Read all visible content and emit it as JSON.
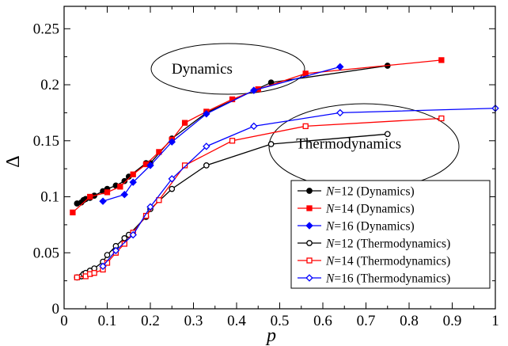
{
  "chart_data": {
    "type": "line",
    "xlabel": "p",
    "ylabel": "Δ",
    "xlim": [
      0,
      1
    ],
    "ylim": [
      0,
      0.27
    ],
    "xticks": [
      "0",
      "0.1",
      "0.2",
      "0.3",
      "0.4",
      "0.5",
      "0.6",
      "0.7",
      "0.8",
      "0.9",
      "1"
    ],
    "yticks": [
      "0",
      "0.05",
      "0.1",
      "0.15",
      "0.2",
      "0.25"
    ],
    "grid": false,
    "legend_position": "bottom-right",
    "annotations": [
      {
        "text": "Dynamics",
        "x": 0.32,
        "y": 0.21
      },
      {
        "text": "Thermodynamics",
        "x": 0.66,
        "y": 0.143
      }
    ],
    "series": [
      {
        "name": "N=12 (Dynamics)",
        "color": "#000000",
        "marker": "circle",
        "filled": true,
        "x": [
          0.03,
          0.04,
          0.045,
          0.05,
          0.06,
          0.07,
          0.09,
          0.1,
          0.12,
          0.14,
          0.15,
          0.19,
          0.2,
          0.25,
          0.33,
          0.48,
          0.75
        ],
        "y": [
          0.094,
          0.095,
          0.097,
          0.098,
          0.099,
          0.101,
          0.105,
          0.107,
          0.11,
          0.114,
          0.118,
          0.13,
          0.13,
          0.152,
          0.175,
          0.202,
          0.217
        ]
      },
      {
        "name": "N=14 (Dynamics)",
        "color": "#ff0000",
        "marker": "square",
        "filled": true,
        "x": [
          0.02,
          0.06,
          0.1,
          0.13,
          0.16,
          0.19,
          0.22,
          0.25,
          0.28,
          0.33,
          0.39,
          0.45,
          0.56,
          0.875
        ],
        "y": [
          0.086,
          0.1,
          0.104,
          0.109,
          0.12,
          0.129,
          0.14,
          0.151,
          0.166,
          0.176,
          0.187,
          0.196,
          0.21,
          0.222
        ]
      },
      {
        "name": "N=16 (Dynamics)",
        "color": "#0000ff",
        "marker": "diamond",
        "filled": true,
        "x": [
          0.09,
          0.14,
          0.16,
          0.2,
          0.25,
          0.33,
          0.44,
          0.64
        ],
        "y": [
          0.096,
          0.102,
          0.113,
          0.128,
          0.149,
          0.174,
          0.195,
          0.216
        ]
      },
      {
        "name": "N=12 (Thermodynamics)",
        "color": "#000000",
        "marker": "circle",
        "filled": false,
        "x": [
          0.03,
          0.04,
          0.045,
          0.05,
          0.06,
          0.07,
          0.09,
          0.1,
          0.12,
          0.14,
          0.15,
          0.19,
          0.2,
          0.25,
          0.33,
          0.48,
          0.75
        ],
        "y": [
          0.028,
          0.029,
          0.031,
          0.032,
          0.034,
          0.036,
          0.042,
          0.048,
          0.056,
          0.063,
          0.066,
          0.082,
          0.089,
          0.107,
          0.128,
          0.147,
          0.156
        ]
      },
      {
        "name": "N=14 (Thermodynamics)",
        "color": "#ff0000",
        "marker": "square",
        "filled": false,
        "x": [
          0.03,
          0.05,
          0.06,
          0.07,
          0.09,
          0.1,
          0.12,
          0.14,
          0.16,
          0.19,
          0.22,
          0.28,
          0.39,
          0.56,
          0.875
        ],
        "y": [
          0.028,
          0.029,
          0.031,
          0.032,
          0.035,
          0.041,
          0.05,
          0.058,
          0.068,
          0.083,
          0.097,
          0.128,
          0.15,
          0.163,
          0.17
        ]
      },
      {
        "name": "N=16 (Thermodynamics)",
        "color": "#0000ff",
        "marker": "diamond",
        "filled": false,
        "x": [
          0.09,
          0.12,
          0.16,
          0.2,
          0.25,
          0.33,
          0.44,
          0.64,
          1.0
        ],
        "y": [
          0.038,
          0.052,
          0.066,
          0.091,
          0.116,
          0.145,
          0.163,
          0.175,
          0.179
        ]
      }
    ]
  }
}
